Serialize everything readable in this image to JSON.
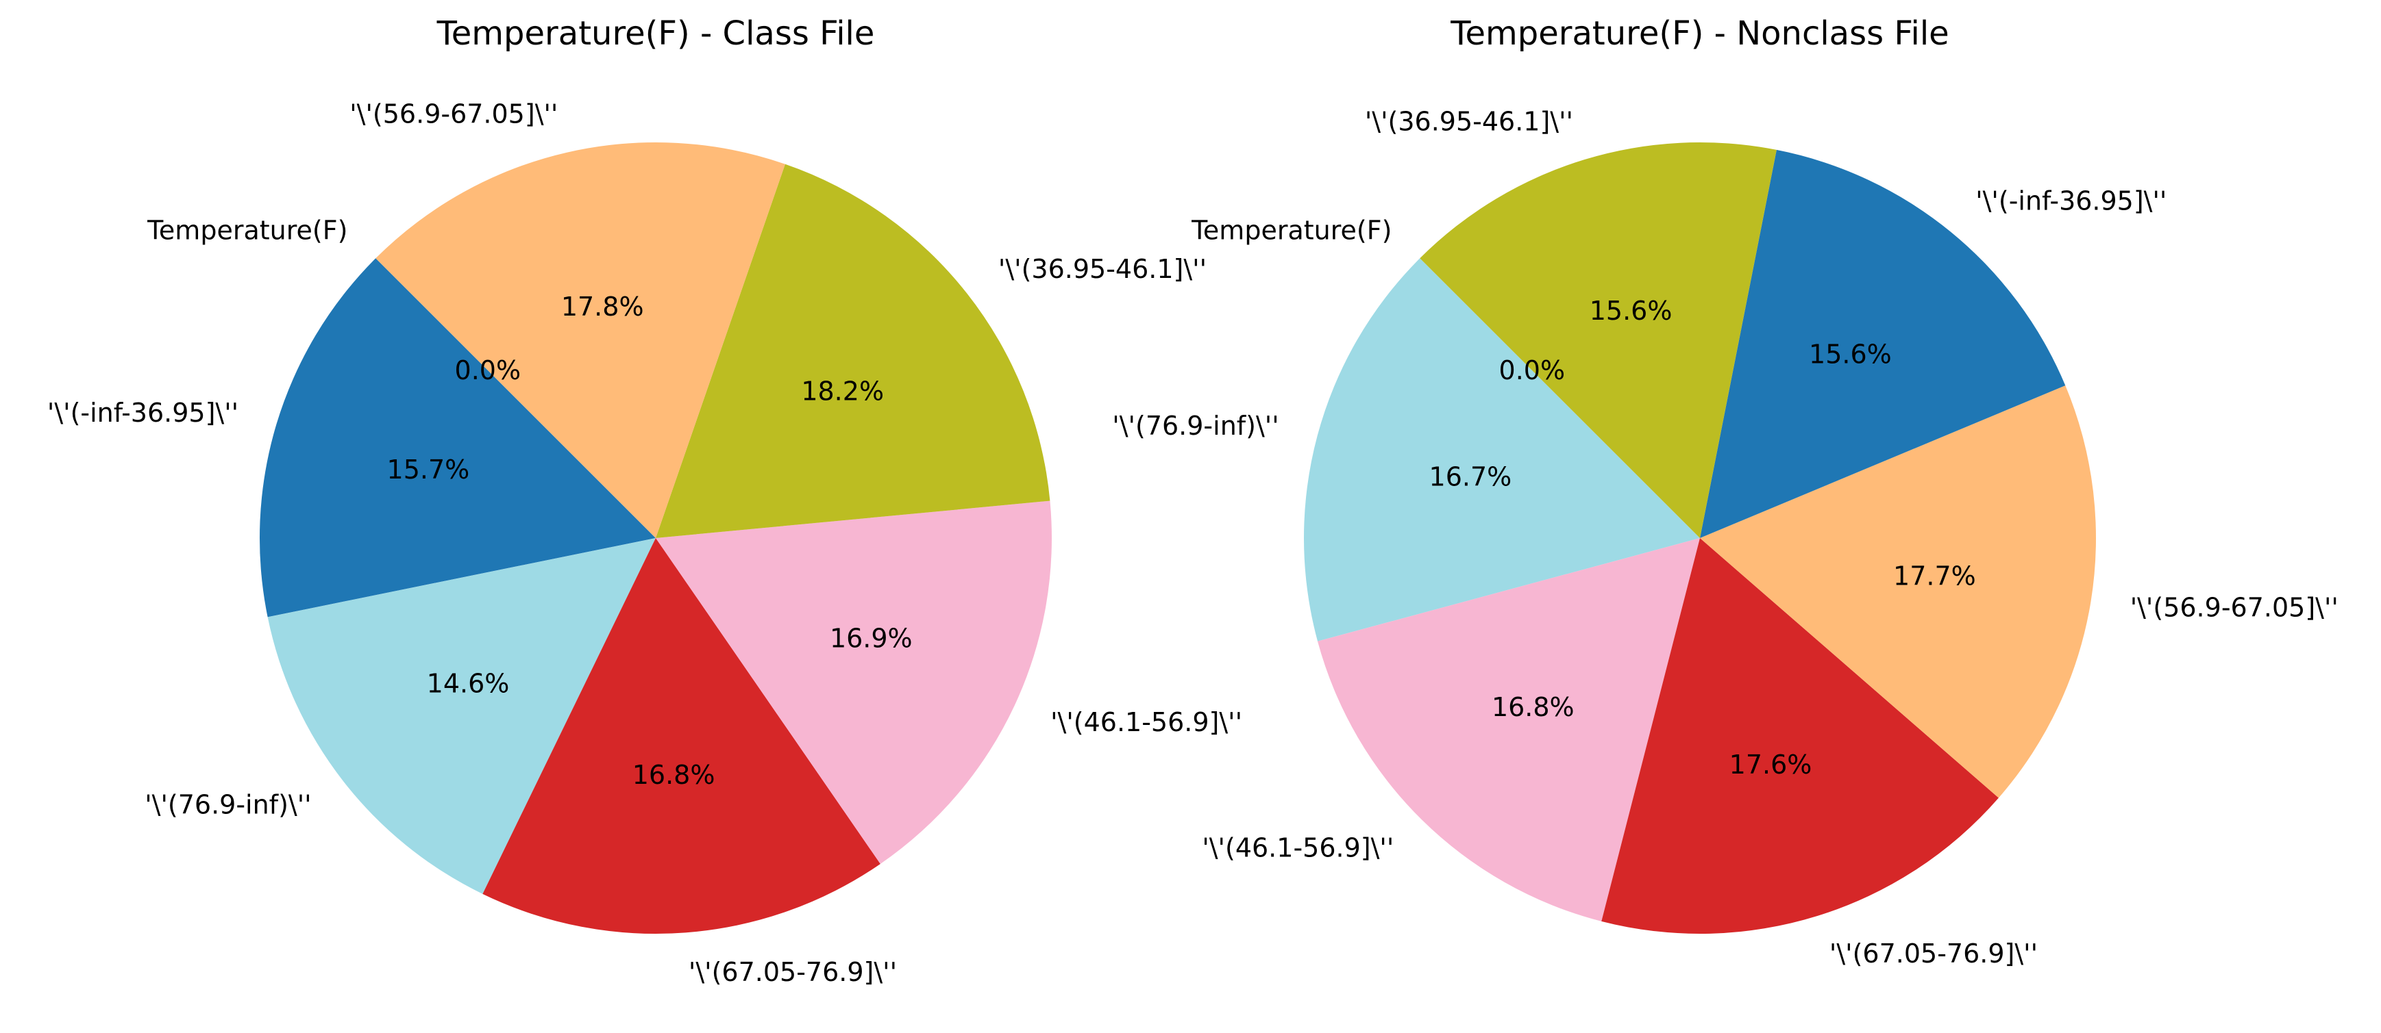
{
  "chart_data": [
    {
      "type": "pie",
      "title": "Temperature(F) - Class File",
      "start_angle": 135,
      "counterclock": true,
      "slices": [
        {
          "label": "Temperature(F)",
          "value": 0.0,
          "pct_label": "0.0%",
          "color": "#1f77b4"
        },
        {
          "label": "'\\'(-inf-36.95]\\''",
          "value": 15.7,
          "pct_label": "15.7%",
          "color": "#1f77b4"
        },
        {
          "label": "'\\'(76.9-inf)\\''",
          "value": 14.6,
          "pct_label": "14.6%",
          "color": "#9edae5"
        },
        {
          "label": "'\\'(67.05-76.9]\\''",
          "value": 16.8,
          "pct_label": "16.8%",
          "color": "#d62728"
        },
        {
          "label": "'\\'(46.1-56.9]\\''",
          "value": 16.9,
          "pct_label": "16.9%",
          "color": "#f7b6d2"
        },
        {
          "label": "'\\'(36.95-46.1]\\''",
          "value": 18.2,
          "pct_label": "18.2%",
          "color": "#bcbd22"
        },
        {
          "label": "'\\'(56.9-67.05]\\''",
          "value": 17.8,
          "pct_label": "17.8%",
          "color": "#ffbb78"
        }
      ]
    },
    {
      "type": "pie",
      "title": "Temperature(F) - Nonclass File",
      "start_angle": 135,
      "counterclock": true,
      "slices": [
        {
          "label": "Temperature(F)",
          "value": 0.0,
          "pct_label": "0.0%",
          "color": "#9edae5"
        },
        {
          "label": "'\\'(76.9-inf)\\''",
          "value": 16.7,
          "pct_label": "16.7%",
          "color": "#9edae5"
        },
        {
          "label": "'\\'(46.1-56.9]\\''",
          "value": 16.8,
          "pct_label": "16.8%",
          "color": "#f7b6d2"
        },
        {
          "label": "'\\'(67.05-76.9]\\''",
          "value": 17.6,
          "pct_label": "17.6%",
          "color": "#d62728"
        },
        {
          "label": "'\\'(56.9-67.05]\\''",
          "value": 17.7,
          "pct_label": "17.7%",
          "color": "#ffbb78"
        },
        {
          "label": "'\\'(-inf-36.95]\\''",
          "value": 15.6,
          "pct_label": "15.6%",
          "color": "#1f77b4"
        },
        {
          "label": "'\\'(36.95-46.1]\\''",
          "value": 15.6,
          "pct_label": "15.6%",
          "color": "#bcbd22"
        }
      ]
    }
  ]
}
